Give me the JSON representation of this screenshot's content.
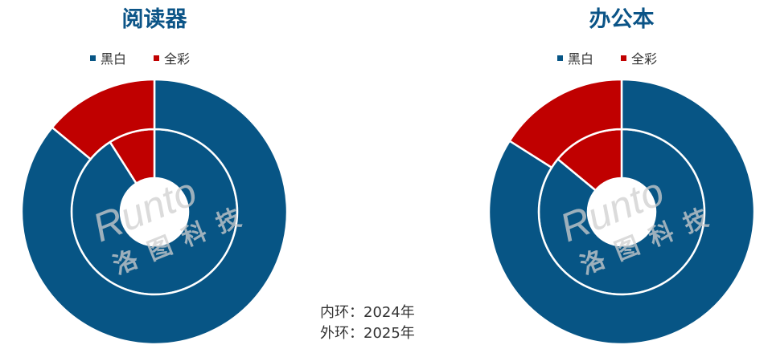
{
  "chart_data": [
    {
      "type": "pie",
      "title": "阅读器",
      "categories": [
        "黑白",
        "全彩"
      ],
      "series": [
        {
          "name": "2024",
          "ring": "inner",
          "values": [
            91,
            9
          ]
        },
        {
          "name": "2025",
          "ring": "outer",
          "values": [
            86,
            14
          ]
        }
      ]
    },
    {
      "type": "pie",
      "title": "办公本",
      "categories": [
        "黑白",
        "全彩"
      ],
      "series": [
        {
          "name": "2024",
          "ring": "inner",
          "values": [
            86,
            14
          ]
        },
        {
          "name": "2025",
          "ring": "outer",
          "values": [
            84,
            16
          ]
        }
      ]
    }
  ],
  "colors": {
    "黑白": "#075585",
    "全彩": "#c00000",
    "title": "#0b5487"
  },
  "notes": {
    "inner": "内环：2024年",
    "outer": "外环：2025年"
  },
  "watermark": {
    "latin": "Runto",
    "cjk": "洛图科技"
  }
}
